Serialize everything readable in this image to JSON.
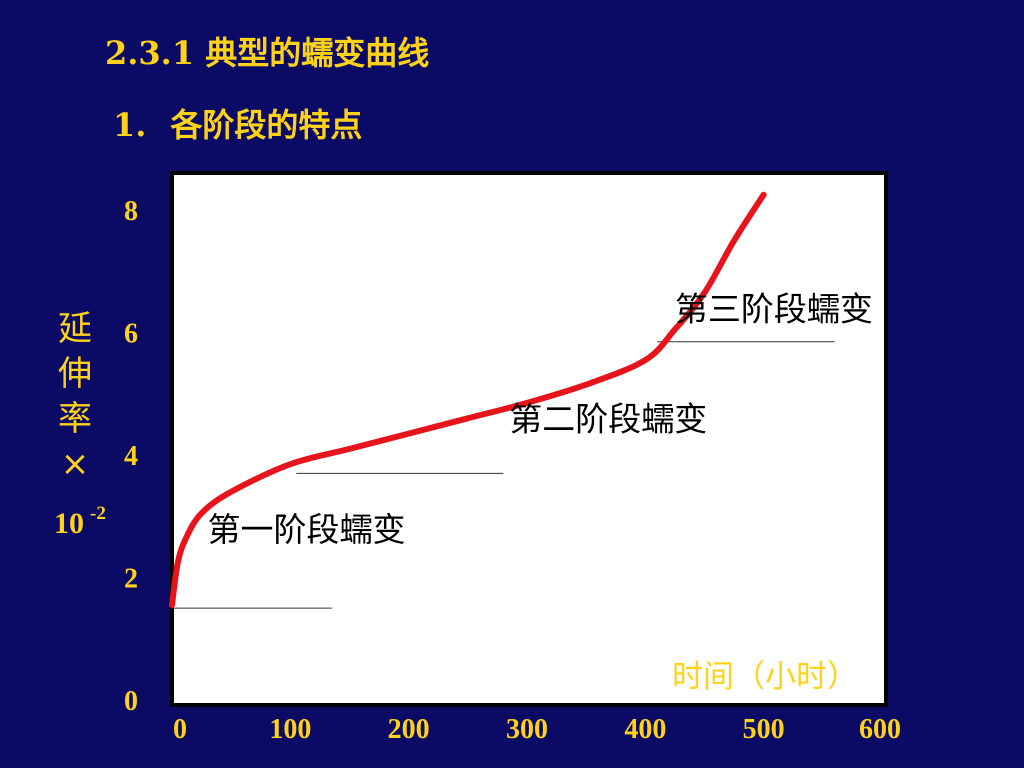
{
  "slide": {
    "title": "2.3.1 典型的蠕变曲线",
    "subtitle_number": "1.",
    "subtitle_label": "各阶段的特点"
  },
  "colors": {
    "background": "#0b0b66",
    "heading": "#ffd21a",
    "curve": "#e8141c",
    "plot_background": "#ffffff"
  },
  "chart_data": {
    "type": "line",
    "title": "",
    "xlabel": "时间（小时）",
    "ylabel_text": "延伸率×",
    "ylabel_base": "10",
    "ylabel_exponent": "-2",
    "xlim": [
      0,
      600
    ],
    "ylim": [
      0,
      8
    ],
    "x_ticks": [
      "0",
      "100",
      "200",
      "300",
      "400",
      "500",
      "600"
    ],
    "y_ticks": [
      "0",
      "2",
      "4",
      "6",
      "8"
    ],
    "grid": false,
    "series": [
      {
        "x": [
          0,
          5,
          12,
          25,
          50,
          100,
          150,
          200,
          250,
          300,
          350,
          400,
          425,
          450,
          475,
          500
        ],
        "y": [
          1.55,
          2.25,
          2.65,
          3.05,
          3.4,
          3.85,
          4.1,
          4.35,
          4.6,
          4.85,
          5.15,
          5.55,
          6.05,
          6.65,
          7.5,
          8.25
        ]
      }
    ],
    "annotations": [
      {
        "text": "第一阶段蠕变",
        "x": 30,
        "y": 2.6,
        "underline": [
          0,
          135,
          1.5
        ]
      },
      {
        "text": "第二阶段蠕变",
        "x": 285,
        "y": 4.4,
        "underline": [
          105,
          280,
          3.7
        ]
      },
      {
        "text": "第三阶段蠕变",
        "x": 425,
        "y": 6.2,
        "underline": [
          410,
          560,
          5.85
        ]
      }
    ]
  }
}
